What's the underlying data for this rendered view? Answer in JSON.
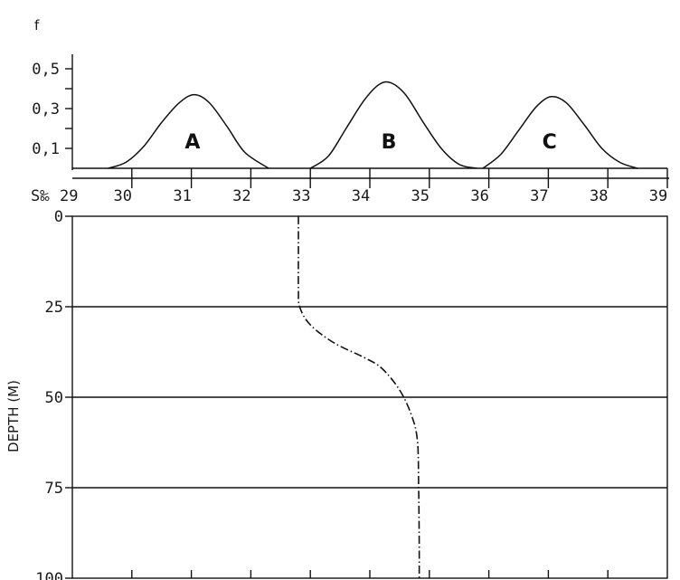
{
  "chart_data": [
    {
      "type": "line",
      "ylabel": "f",
      "xlabel": "S‰",
      "xlim": [
        29,
        39
      ],
      "ylim": [
        0,
        0.5
      ],
      "y_ticks": [
        0.1,
        0.2,
        0.3,
        0.4,
        0.5
      ],
      "y_tick_labels": [
        "0,1",
        "0,3",
        "0,5"
      ],
      "x_ticks": [
        29,
        30,
        31,
        32,
        33,
        34,
        35,
        36,
        37,
        38,
        39
      ],
      "x_tick_labels": [
        "29",
        "30",
        "31",
        "32",
        "33",
        "34",
        "35",
        "36",
        "37",
        "38",
        "39"
      ],
      "series": [
        {
          "name": "A",
          "x": [
            29.6,
            29.9,
            30.2,
            30.5,
            30.8,
            31.05,
            31.3,
            31.6,
            31.9,
            32.3
          ],
          "y": [
            0.0,
            0.03,
            0.11,
            0.23,
            0.33,
            0.37,
            0.33,
            0.21,
            0.08,
            0.0
          ]
        },
        {
          "name": "B",
          "x": [
            33.0,
            33.3,
            33.6,
            33.9,
            34.15,
            34.35,
            34.6,
            34.9,
            35.2,
            35.5,
            35.8
          ],
          "y": [
            0.0,
            0.06,
            0.2,
            0.34,
            0.42,
            0.43,
            0.37,
            0.23,
            0.1,
            0.02,
            0.0
          ]
        },
        {
          "name": "C",
          "x": [
            35.9,
            36.2,
            36.5,
            36.8,
            37.05,
            37.3,
            37.6,
            37.9,
            38.2,
            38.5
          ],
          "y": [
            0.0,
            0.07,
            0.19,
            0.31,
            0.36,
            0.33,
            0.22,
            0.1,
            0.03,
            0.0
          ]
        }
      ]
    },
    {
      "type": "line",
      "ylabel": "DEPTH (M)",
      "xlim": [
        29,
        39
      ],
      "ylim": [
        0,
        100
      ],
      "y_reversed": true,
      "y_ticks": [
        0,
        25,
        50,
        75,
        100
      ],
      "y_tick_labels": [
        "0",
        "25",
        "50",
        "75",
        "100"
      ],
      "grid": "horizontal",
      "line_style": "dash-dot",
      "series": [
        {
          "x": [
            32.8,
            32.8,
            32.8,
            32.82,
            33.0,
            33.4,
            33.9,
            34.2,
            34.5,
            34.7,
            34.8,
            34.82,
            34.83,
            34.83
          ],
          "y": [
            0,
            10,
            20,
            25,
            30,
            35,
            39,
            42,
            48,
            55,
            62,
            75,
            90,
            100
          ]
        }
      ]
    }
  ],
  "axis_prefix": "S‰",
  "peak_labels": [
    "A",
    "B",
    "C"
  ]
}
